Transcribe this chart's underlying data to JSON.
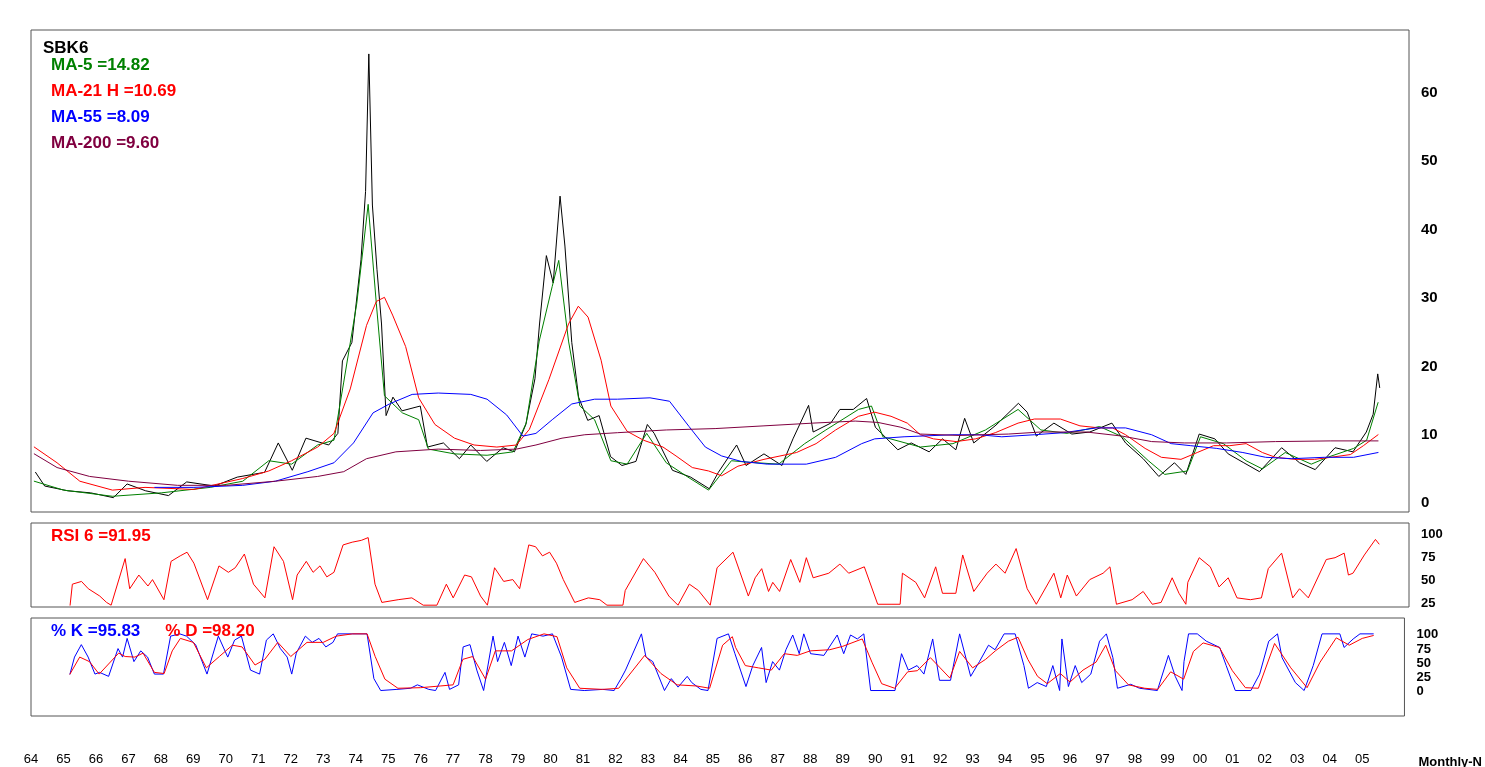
{
  "chart_data": [
    {
      "type": "line",
      "title": "SBK6",
      "legend": "top left",
      "marker": "none",
      "tick_labels": "y",
      "xlim": [
        1964,
        2006.3
      ],
      "ylim": [
        -1.5,
        69
      ],
      "yticks": [
        0,
        10,
        20,
        30,
        40,
        50,
        60
      ],
      "series": [
        {
          "color": "#000000",
          "x": [
            1964.14,
            1964.42,
            1965.13,
            1965.83,
            1966.53,
            1966.95,
            1967.52,
            1968.22,
            1968.78,
            1969.63,
            1970.33,
            1971.17,
            1971.59,
            1972.02,
            1972.44,
            1973.14,
            1973.42,
            1973.56,
            1973.85,
            1974.13,
            1974.27,
            1974.37,
            1974.48,
            1974.62,
            1974.76,
            1974.9,
            1975.11,
            1975.39,
            1975.95,
            1976.17,
            1976.66,
            1977.15,
            1977.5,
            1977.99,
            1978.49,
            1978.84,
            1979.19,
            1979.47,
            1979.61,
            1979.82,
            1980.03,
            1980.24,
            1980.39,
            1980.6,
            1980.81,
            1981.09,
            1981.44,
            1981.79,
            1982.14,
            1982.57,
            1982.92,
            1983.13,
            1983.69,
            1984.25,
            1984.82,
            1985.1,
            1985.66,
            1985.95,
            1986.5,
            1987.05,
            1987.39,
            1987.87,
            1988.01,
            1988.55,
            1988.83,
            1989.24,
            1989.65,
            1989.92,
            1990.61,
            1991.02,
            1991.57,
            1991.98,
            1992.39,
            1992.66,
            1992.94,
            1993.62,
            1994.31,
            1994.58,
            1994.86,
            1995.4,
            1995.95,
            1996.5,
            1997.18,
            1997.6,
            1998.14,
            1998.62,
            1999.1,
            1999.45,
            1999.86,
            2000.34,
            2000.75,
            2001.23,
            2001.71,
            2002.39,
            2002.94,
            2003.42,
            2004.03,
            2004.58,
            2004.99,
            2005.2,
            2005.34,
            2005.4
          ],
          "values": [
            4.3,
            2.3,
            1.6,
            1.3,
            0.6,
            2.6,
            1.6,
            0.9,
            2.9,
            2.3,
            3.6,
            4.3,
            8.6,
            4.6,
            9.3,
            8.3,
            10.0,
            20.6,
            23.3,
            35.4,
            45.4,
            65.5,
            43.4,
            34.0,
            26.0,
            12.6,
            15.3,
            13.3,
            14.0,
            8.0,
            8.6,
            6.3,
            8.3,
            5.9,
            7.9,
            7.3,
            11.3,
            18.0,
            26.0,
            36.0,
            32.0,
            44.7,
            37.4,
            23.3,
            15.3,
            11.9,
            12.6,
            6.6,
            5.3,
            5.9,
            11.3,
            10.0,
            4.6,
            3.6,
            1.9,
            4.3,
            8.3,
            5.3,
            7.0,
            5.3,
            9.2,
            14.1,
            10.2,
            11.5,
            13.5,
            13.5,
            15.1,
            10.9,
            7.6,
            8.6,
            7.3,
            9.2,
            7.6,
            12.2,
            8.6,
            11.2,
            14.4,
            13.1,
            9.6,
            11.5,
            9.9,
            10.2,
            11.5,
            8.6,
            6.3,
            3.7,
            5.7,
            4.0,
            9.9,
            9.2,
            7.0,
            5.7,
            4.4,
            7.9,
            5.7,
            4.7,
            7.9,
            7.3,
            10.2,
            12.8,
            18.7,
            16.7
          ]
        },
        {
          "name": "MA-5 =14.82",
          "color": "#008000",
          "x": [
            1964.1,
            1965.0,
            1966.5,
            1968.0,
            1969.5,
            1970.5,
            1971.3,
            1972.0,
            1972.8,
            1973.3,
            1973.6,
            1974.0,
            1974.35,
            1974.6,
            1974.85,
            1975.4,
            1975.9,
            1976.2,
            1977.0,
            1978.0,
            1978.8,
            1979.2,
            1979.6,
            1980.0,
            1980.2,
            1980.5,
            1980.85,
            1981.3,
            1981.8,
            1982.3,
            1982.9,
            1983.5,
            1984.2,
            1984.8,
            1985.5,
            1985.96,
            1986.95,
            1987.75,
            1988.4,
            1989.4,
            1989.8,
            1990.15,
            1991.3,
            1992.3,
            1993.3,
            1994.3,
            1995.0,
            1995.8,
            1996.8,
            1997.5,
            1998.3,
            1998.8,
            1999.5,
            1999.9,
            2000.6,
            2001.3,
            2001.8,
            2002.5,
            2003.3,
            2003.8,
            2004.6,
            2005.0,
            2005.35
          ],
          "values": [
            3.0,
            1.7,
            0.8,
            1.3,
            2.1,
            3.0,
            6.0,
            5.5,
            8.3,
            9.0,
            17.5,
            29,
            43.5,
            29,
            15.5,
            13.0,
            12.0,
            7.7,
            7.0,
            6.8,
            7.3,
            11.5,
            23.5,
            31.5,
            35.3,
            23.5,
            14.0,
            12.0,
            6.0,
            5.5,
            10.0,
            5.7,
            3.5,
            1.7,
            6.0,
            5.8,
            5.5,
            8.5,
            10.5,
            13.5,
            14.0,
            9.5,
            8.0,
            8.5,
            10.5,
            13.5,
            10.5,
            10.0,
            11.0,
            9.5,
            6.0,
            4.0,
            4.5,
            9.5,
            8.5,
            6.0,
            4.8,
            7.2,
            5.5,
            6.5,
            7.8,
            9.0,
            14.5
          ]
        },
        {
          "name": "MA-21 H =10.69",
          "color": "#ff0000",
          "x": [
            1964.1,
            1964.8,
            1965.5,
            1966.5,
            1967.5,
            1969.0,
            1970.5,
            1971.3,
            1972.0,
            1972.8,
            1973.3,
            1973.8,
            1974.3,
            1974.6,
            1974.85,
            1975.1,
            1975.5,
            1975.9,
            1976.4,
            1977.0,
            1977.6,
            1978.3,
            1978.9,
            1979.3,
            1979.9,
            1980.5,
            1980.8,
            1981.1,
            1981.5,
            1981.8,
            1982.3,
            1982.8,
            1983.4,
            1983.8,
            1984.3,
            1984.8,
            1985.2,
            1985.7,
            1986.5,
            1987.5,
            1988.1,
            1988.7,
            1989.4,
            1989.9,
            1990.4,
            1990.9,
            1991.3,
            1991.7,
            1992.4,
            1993.0,
            1993.6,
            1994.3,
            1994.8,
            1995.6,
            1996.2,
            1996.8,
            1997.2,
            1997.6,
            1998.2,
            1998.7,
            1999.3,
            1999.8,
            2000.3,
            2000.8,
            2001.3,
            2001.8,
            2002.2,
            2002.8,
            2003.4,
            2003.9,
            2004.5,
            2004.9,
            2005.35
          ],
          "values": [
            8.0,
            5.7,
            3.0,
            1.7,
            2.1,
            1.8,
            3.4,
            4.5,
            6.0,
            8.0,
            10.0,
            16.5,
            25.8,
            29.3,
            29.9,
            27.3,
            22.7,
            15.2,
            11.3,
            9.3,
            8.3,
            8.0,
            8.3,
            10.6,
            17.9,
            26.0,
            28.6,
            27.0,
            20.7,
            14.0,
            10.3,
            9.0,
            8.0,
            6.7,
            5.0,
            4.5,
            3.8,
            5.2,
            6.2,
            7.2,
            8.5,
            10.5,
            12.5,
            13.1,
            12.5,
            11.5,
            9.8,
            9.2,
            8.8,
            9.2,
            10.1,
            11.5,
            12.1,
            12.1,
            11.1,
            10.8,
            10.8,
            9.8,
            7.8,
            6.5,
            6.2,
            7.2,
            8.2,
            8.2,
            8.5,
            7.2,
            6.5,
            6.2,
            6.2,
            6.5,
            6.9,
            8.2,
            9.8
          ]
        },
        {
          "name": "MA-55 =8.09",
          "color": "#0000ff",
          "x": [
            1967.8,
            1969.0,
            1970.5,
            1971.5,
            1972.5,
            1973.3,
            1973.9,
            1974.5,
            1975.0,
            1975.7,
            1976.5,
            1977.5,
            1978.0,
            1978.6,
            1979.1,
            1979.5,
            1980.0,
            1980.6,
            1981.3,
            1982.0,
            1983.0,
            1983.6,
            1984.2,
            1984.7,
            1985.2,
            1985.8,
            1986.6,
            1987.8,
            1988.7,
            1989.5,
            1989.9,
            1990.8,
            1992.3,
            1993.1,
            1993.8,
            1994.8,
            1995.7,
            1996.7,
            1997.6,
            1998.4,
            1999.0,
            1999.6,
            2000.4,
            2001.2,
            2001.9,
            2002.7,
            2003.7,
            2004.6,
            2005.35
          ],
          "values": [
            2.1,
            2.1,
            2.4,
            3.0,
            4.4,
            5.7,
            8.6,
            13.0,
            14.3,
            15.7,
            15.9,
            15.7,
            15.0,
            12.7,
            9.6,
            10.0,
            12.0,
            14.3,
            15.0,
            15.0,
            15.2,
            14.7,
            11.0,
            8.0,
            6.7,
            5.9,
            5.5,
            5.5,
            6.5,
            8.5,
            9.2,
            9.5,
            9.8,
            9.8,
            9.5,
            9.8,
            10.1,
            10.8,
            10.8,
            9.8,
            8.5,
            8.2,
            7.8,
            7.2,
            6.5,
            6.3,
            6.5,
            6.5,
            7.2
          ]
        },
        {
          "name": "MA-200 =9.60",
          "color": "#800040",
          "x": [
            1964.1,
            1964.8,
            1965.8,
            1967.0,
            1968.5,
            1970.0,
            1971.5,
            1972.8,
            1973.6,
            1974.3,
            1975.2,
            1976.5,
            1977.8,
            1978.9,
            1979.5,
            1980.3,
            1981.0,
            1982.0,
            1983.5,
            1985.0,
            1986.5,
            1988.0,
            1989.3,
            1990.0,
            1990.7,
            1991.3,
            1992.5,
            1994.0,
            1995.0,
            1996.4,
            1997.5,
            1998.4,
            1999.4,
            2000.7,
            2002.2,
            2003.9,
            2005.35
          ],
          "values": [
            7.0,
            5.0,
            3.7,
            3.0,
            2.4,
            2.4,
            3.0,
            3.7,
            4.4,
            6.3,
            7.3,
            7.7,
            7.5,
            7.7,
            8.3,
            9.3,
            9.8,
            10.1,
            10.5,
            10.7,
            11.1,
            11.5,
            11.8,
            11.6,
            10.9,
            9.9,
            9.7,
            9.9,
            10.2,
            10.2,
            9.6,
            8.8,
            8.6,
            8.6,
            8.8,
            8.9,
            8.9
          ]
        }
      ]
    },
    {
      "type": "line",
      "legend": "top left",
      "marker": "none",
      "tick_labels": "y",
      "xlim": [
        1964,
        2006.3
      ],
      "ylim": [
        20,
        112
      ],
      "yticks": [
        25,
        50,
        75,
        100
      ],
      "series": [
        {
          "name": "RSI 6 =91.95",
          "color": "#ff0000",
          "x": [
            1965.2,
            1965.27,
            1965.55,
            1965.76,
            1966.11,
            1966.32,
            1966.46,
            1966.89,
            1967.03,
            1967.31,
            1967.59,
            1967.73,
            1968.08,
            1968.3,
            1968.58,
            1968.79,
            1969.0,
            1969.42,
            1969.77,
            1970.06,
            1970.27,
            1970.55,
            1970.83,
            1971.18,
            1971.46,
            1971.75,
            1972.03,
            1972.17,
            1972.45,
            1972.66,
            1972.87,
            1973.08,
            1973.3,
            1973.58,
            1973.86,
            1974.14,
            1974.35,
            1974.56,
            1974.77,
            1975.27,
            1975.69,
            1976.04,
            1976.46,
            1976.75,
            1976.96,
            1977.31,
            1977.52,
            1977.8,
            1978.01,
            1978.23,
            1978.51,
            1978.79,
            1979.0,
            1979.28,
            1979.49,
            1979.7,
            1979.92,
            1980.13,
            1980.34,
            1980.69,
            1981.11,
            1981.46,
            1981.68,
            1982.17,
            1982.24,
            1982.8,
            1983.15,
            1983.58,
            1983.86,
            1984.21,
            1984.49,
            1984.85,
            1985.06,
            1985.55,
            1986.02,
            1986.23,
            1986.43,
            1986.64,
            1986.77,
            1986.98,
            1987.32,
            1987.6,
            1987.8,
            1988.01,
            1988.49,
            1988.83,
            1989.1,
            1989.58,
            1989.99,
            1990.4,
            1990.68,
            1990.75,
            1991.16,
            1991.43,
            1991.77,
            1991.98,
            1992.39,
            1992.6,
            1992.94,
            1993.35,
            1993.62,
            1993.9,
            1994.24,
            1994.58,
            1994.86,
            1995.4,
            1995.61,
            1995.81,
            1996.09,
            1996.5,
            1996.91,
            1997.12,
            1997.32,
            1997.8,
            1998.14,
            1998.42,
            1998.69,
            1999.03,
            1999.24,
            1999.45,
            1999.51,
            1999.86,
            2000.2,
            2000.47,
            2000.75,
            2001.02,
            2001.43,
            2001.77,
            2001.98,
            2002.39,
            2002.73,
            2002.94,
            2003.21,
            2003.76,
            2004.03,
            2004.31,
            2004.44,
            2004.58,
            2004.93,
            2005.27,
            2005.38
          ],
          "values": [
            22,
            45,
            48,
            40,
            32,
            25,
            22,
            73,
            40,
            55,
            43,
            50,
            28,
            70,
            76,
            80,
            68,
            28,
            65,
            58,
            63,
            78,
            45,
            30,
            86,
            70,
            28,
            55,
            70,
            58,
            65,
            53,
            58,
            88,
            91,
            93,
            96,
            45,
            25,
            28,
            30,
            22,
            22,
            45,
            30,
            55,
            53,
            32,
            22,
            63,
            48,
            50,
            40,
            88,
            86,
            76,
            80,
            68,
            50,
            25,
            30,
            28,
            22,
            22,
            38,
            73,
            58,
            32,
            22,
            45,
            38,
            22,
            63,
            80,
            32,
            52,
            62,
            37,
            47,
            37,
            72,
            47,
            74,
            52,
            57,
            67,
            57,
            64,
            23,
            23,
            23,
            57,
            47,
            30,
            64,
            35,
            35,
            77,
            37,
            57,
            67,
            57,
            84,
            40,
            23,
            57,
            30,
            55,
            32,
            50,
            57,
            64,
            23,
            28,
            37,
            23,
            25,
            52,
            35,
            23,
            47,
            74,
            64,
            42,
            52,
            30,
            28,
            30,
            62,
            79,
            30,
            40,
            30,
            72,
            74,
            79,
            55,
            57,
            77,
            94,
            89
          ]
        }
      ]
    },
    {
      "type": "line",
      "legend": "top left",
      "marker": "none",
      "xlabel": "Monthly-N",
      "xlim": [
        1964,
        2006.3
      ],
      "ylim": [
        -45,
        128
      ],
      "yticks": [
        0,
        25,
        50,
        75,
        100
      ],
      "xticks": [
        {
          "value": 1964,
          "label": "64"
        },
        {
          "value": 1965,
          "label": "65"
        },
        {
          "value": 1966,
          "label": "66"
        },
        {
          "value": 1967,
          "label": "67"
        },
        {
          "value": 1968,
          "label": "68"
        },
        {
          "value": 1969,
          "label": "69"
        },
        {
          "value": 1970,
          "label": "70"
        },
        {
          "value": 1971,
          "label": "71"
        },
        {
          "value": 1972,
          "label": "72"
        },
        {
          "value": 1973,
          "label": "73"
        },
        {
          "value": 1974,
          "label": "74"
        },
        {
          "value": 1975,
          "label": "75"
        },
        {
          "value": 1976,
          "label": "76"
        },
        {
          "value": 1977,
          "label": "77"
        },
        {
          "value": 1978,
          "label": "78"
        },
        {
          "value": 1979,
          "label": "79"
        },
        {
          "value": 1980,
          "label": "80"
        },
        {
          "value": 1981,
          "label": "81"
        },
        {
          "value": 1982,
          "label": "82"
        },
        {
          "value": 1983,
          "label": "83"
        },
        {
          "value": 1984,
          "label": "84"
        },
        {
          "value": 1985,
          "label": "85"
        },
        {
          "value": 1986,
          "label": "86"
        },
        {
          "value": 1987,
          "label": "87"
        },
        {
          "value": 1988,
          "label": "88"
        },
        {
          "value": 1989,
          "label": "89"
        },
        {
          "value": 1990,
          "label": "90"
        },
        {
          "value": 1991,
          "label": "91"
        },
        {
          "value": 1992,
          "label": "92"
        },
        {
          "value": 1993,
          "label": "93"
        },
        {
          "value": 1994,
          "label": "94"
        },
        {
          "value": 1995,
          "label": "95"
        },
        {
          "value": 1996,
          "label": "96"
        },
        {
          "value": 1997,
          "label": "97"
        },
        {
          "value": 1998,
          "label": "98"
        },
        {
          "value": 1999,
          "label": "99"
        },
        {
          "value": 2000,
          "label": "00"
        },
        {
          "value": 2001,
          "label": "01"
        },
        {
          "value": 2002,
          "label": "02"
        },
        {
          "value": 2003,
          "label": "03"
        },
        {
          "value": 2004,
          "label": "04"
        },
        {
          "value": 2005,
          "label": "05"
        }
      ],
      "series": [
        {
          "name": "% K =95.83",
          "color": "#0000ff",
          "x": [
            1965.2,
            1965.34,
            1965.55,
            1965.76,
            1965.97,
            1966.11,
            1966.39,
            1966.68,
            1966.82,
            1966.96,
            1967.17,
            1967.38,
            1967.59,
            1967.8,
            1968.08,
            1968.3,
            1968.58,
            1968.79,
            1969.07,
            1969.42,
            1969.77,
            1970.06,
            1970.27,
            1970.48,
            1970.76,
            1971.04,
            1971.25,
            1971.46,
            1971.68,
            1971.89,
            1972.03,
            1972.17,
            1972.45,
            1972.66,
            1972.87,
            1973.08,
            1973.3,
            1973.44,
            1973.86,
            1974.35,
            1974.56,
            1974.77,
            1975.27,
            1975.69,
            1975.9,
            1976.25,
            1976.46,
            1976.75,
            1976.89,
            1977.17,
            1977.31,
            1977.52,
            1977.73,
            1977.94,
            1978.23,
            1978.37,
            1978.58,
            1978.79,
            1979.0,
            1979.21,
            1979.42,
            1979.77,
            1980.06,
            1980.34,
            1980.62,
            1981.04,
            1981.61,
            1981.96,
            1982.17,
            1982.31,
            1982.8,
            1982.94,
            1983.15,
            1983.51,
            1983.72,
            1983.93,
            1984.21,
            1984.35,
            1984.63,
            1984.85,
            1985.13,
            1985.48,
            1985.68,
            1986.02,
            1986.23,
            1986.5,
            1986.64,
            1986.84,
            1987.05,
            1987.25,
            1987.46,
            1987.66,
            1987.8,
            1988.01,
            1988.42,
            1988.83,
            1989.03,
            1989.24,
            1989.45,
            1989.65,
            1989.86,
            1990.61,
            1990.81,
            1991.02,
            1991.29,
            1991.5,
            1991.77,
            1991.98,
            1992.32,
            1992.6,
            1992.94,
            1993.21,
            1993.49,
            1993.69,
            1993.97,
            1994.31,
            1994.58,
            1994.72,
            1994.99,
            1995.27,
            1995.47,
            1995.68,
            1995.75,
            1995.95,
            1996.16,
            1996.36,
            1996.64,
            1996.91,
            1997.12,
            1997.32,
            1997.46,
            1997.87,
            1998.14,
            1998.69,
            1999.03,
            1999.24,
            1999.45,
            1999.51,
            1999.65,
            1999.92,
            2000.2,
            2000.61,
            2000.81,
            2001.09,
            2001.57,
            2001.84,
            2002.12,
            2002.39,
            2002.53,
            2002.94,
            2003.21,
            2003.49,
            2003.76,
            2004.31,
            2004.44,
            2004.72,
            2004.93,
            2005.34
          ],
          "values": [
            29,
            59,
            81,
            59,
            29,
            32,
            25,
            74,
            59,
            92,
            51,
            70,
            59,
            29,
            29,
            96,
            100,
            96,
            81,
            29,
            96,
            59,
            89,
            96,
            36,
            29,
            89,
            100,
            74,
            59,
            29,
            66,
            96,
            85,
            92,
            77,
            85,
            100,
            100,
            100,
            21,
            0,
            2,
            4,
            10,
            2,
            0,
            32,
            2,
            10,
            77,
            81,
            36,
            0,
            96,
            51,
            85,
            44,
            96,
            59,
            100,
            96,
            100,
            59,
            2,
            0,
            2,
            0,
            21,
            36,
            100,
            59,
            51,
            0,
            21,
            6,
            25,
            14,
            2,
            0,
            92,
            100,
            65,
            7,
            44,
            76,
            14,
            51,
            36,
            72,
            98,
            65,
            100,
            65,
            62,
            98,
            65,
            98,
            91,
            100,
            0,
            0,
            65,
            36,
            44,
            29,
            91,
            18,
            18,
            100,
            25,
            51,
            80,
            72,
            100,
            100,
            44,
            4,
            14,
            7,
            44,
            0,
            91,
            7,
            44,
            14,
            29,
            87,
            100,
            58,
            4,
            11,
            4,
            0,
            62,
            25,
            0,
            51,
            100,
            100,
            87,
            76,
            44,
            0,
            0,
            29,
            87,
            100,
            58,
            14,
            0,
            44,
            100,
            100,
            76,
            91,
            100,
            100
          ]
        },
        {
          "name": "% D =98.20",
          "color": "#ff0000",
          "x": [
            1965.2,
            1965.5,
            1965.8,
            1966.1,
            1966.7,
            1966.9,
            1967.2,
            1967.45,
            1967.8,
            1968.1,
            1968.35,
            1968.6,
            1969.0,
            1969.4,
            1969.8,
            1970.2,
            1970.5,
            1970.9,
            1971.2,
            1971.6,
            1972.0,
            1972.5,
            1973.0,
            1973.4,
            1973.9,
            1974.35,
            1974.6,
            1974.9,
            1975.3,
            1976.0,
            1976.6,
            1977.0,
            1977.3,
            1977.6,
            1978.0,
            1978.3,
            1978.8,
            1979.3,
            1979.8,
            1980.2,
            1980.5,
            1980.9,
            1981.6,
            1982.1,
            1982.9,
            1983.4,
            1983.9,
            1984.5,
            1984.9,
            1985.3,
            1985.6,
            1985.7,
            1986.0,
            1986.4,
            1986.8,
            1987.2,
            1987.6,
            1988.0,
            1988.6,
            1989.0,
            1989.6,
            1989.9,
            1990.2,
            1990.6,
            1991.0,
            1991.3,
            1991.7,
            1992.0,
            1992.3,
            1992.6,
            1993.0,
            1993.4,
            1993.7,
            1994.1,
            1994.4,
            1994.7,
            1995.0,
            1995.3,
            1995.7,
            1996.0,
            1996.4,
            1996.8,
            1997.1,
            1997.4,
            1997.8,
            1998.3,
            1998.7,
            1999.1,
            1999.5,
            1999.8,
            2000.1,
            2000.6,
            2001.0,
            2001.4,
            2001.8,
            2002.3,
            2002.8,
            2003.3,
            2003.7,
            2004.2,
            2004.6,
            2005.0,
            2005.34
          ],
          "values": [
            29,
            59,
            51,
            29,
            66,
            60,
            59,
            66,
            32,
            30,
            70,
            92,
            85,
            40,
            60,
            80,
            77,
            45,
            55,
            85,
            60,
            85,
            85,
            96,
            100,
            100,
            60,
            20,
            4,
            5,
            8,
            10,
            55,
            60,
            20,
            70,
            70,
            90,
            100,
            95,
            40,
            4,
            2,
            4,
            62,
            30,
            10,
            8,
            4,
            80,
            95,
            76,
            44,
            40,
            36,
            65,
            62,
            70,
            72,
            78,
            91,
            50,
            12,
            4,
            33,
            35,
            58,
            40,
            22,
            69,
            40,
            55,
            70,
            87,
            94,
            55,
            25,
            12,
            30,
            15,
            36,
            50,
            80,
            35,
            10,
            4,
            2,
            33,
            20,
            69,
            84,
            76,
            35,
            5,
            4,
            83,
            40,
            5,
            50,
            93,
            80,
            92,
            97
          ]
        }
      ]
    }
  ]
}
